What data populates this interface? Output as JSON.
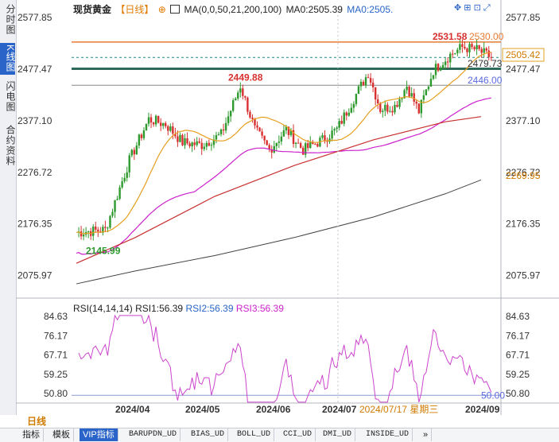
{
  "side_tabs": [
    {
      "label": "分时图",
      "active": false
    },
    {
      "label": "K线图",
      "active": true
    },
    {
      "label": "闪电图",
      "active": false
    },
    {
      "label": "合约资料",
      "active": false
    }
  ],
  "header": {
    "symbol": "现货黄金",
    "period": "【日线】",
    "ma_label": "MA(0,0,50,21,200,100)",
    "ma0": "MA0:2505.39",
    "ma0b": "MA0:2505."
  },
  "price_axis": [
    "2577.85",
    "2477.47",
    "2377.10",
    "2276.72",
    "2176.35",
    "2075.97"
  ],
  "annotations": {
    "high": "2531.58",
    "high_line": "2530.00",
    "mid_high": "2449.88",
    "low": "2145.99",
    "current": "2479.73",
    "ma_label_right": "2446.00",
    "ma_right_2": "2269.95",
    "last_price": "2505.42"
  },
  "rsi": {
    "label": "RSI(14,14,14)",
    "rsi1": "RSI1:56.39",
    "rsi2": "RSI2:56.39",
    "rsi3": "RSI3:56.39",
    "axis": [
      "84.63",
      "76.17",
      "67.71",
      "59.25",
      "50.80"
    ],
    "line_value": "50.00"
  },
  "time_axis": {
    "period": "日线",
    "labels": [
      "2024/04",
      "2024/05",
      "2024/06",
      "2024/07",
      "2024/09"
    ],
    "cursor_date": "2024/07/17 星期三"
  },
  "bottom_tabs": [
    {
      "label": "指标",
      "active": false
    },
    {
      "label": "模板",
      "active": false
    },
    {
      "label": "VIP指标",
      "active": true
    },
    {
      "label": "BARUPDN_UD",
      "active": false
    },
    {
      "label": "BIAS_UD",
      "active": false
    },
    {
      "label": "BOLL_UD",
      "active": false
    },
    {
      "label": "CCI_UD",
      "active": false
    },
    {
      "label": "DMI_UD",
      "active": false
    },
    {
      "label": "INSIDE_UD",
      "active": false
    },
    {
      "label": "»",
      "active": false
    }
  ],
  "colors": {
    "up": "#2e9a2e",
    "down": "#d83030",
    "ma_orange": "#e6a020",
    "ma_magenta": "#cc22cc",
    "ma_red": "#c83030",
    "ma_gray": "#444444",
    "rsi": "#cc44cc",
    "accent": "#2a64c8"
  }
}
